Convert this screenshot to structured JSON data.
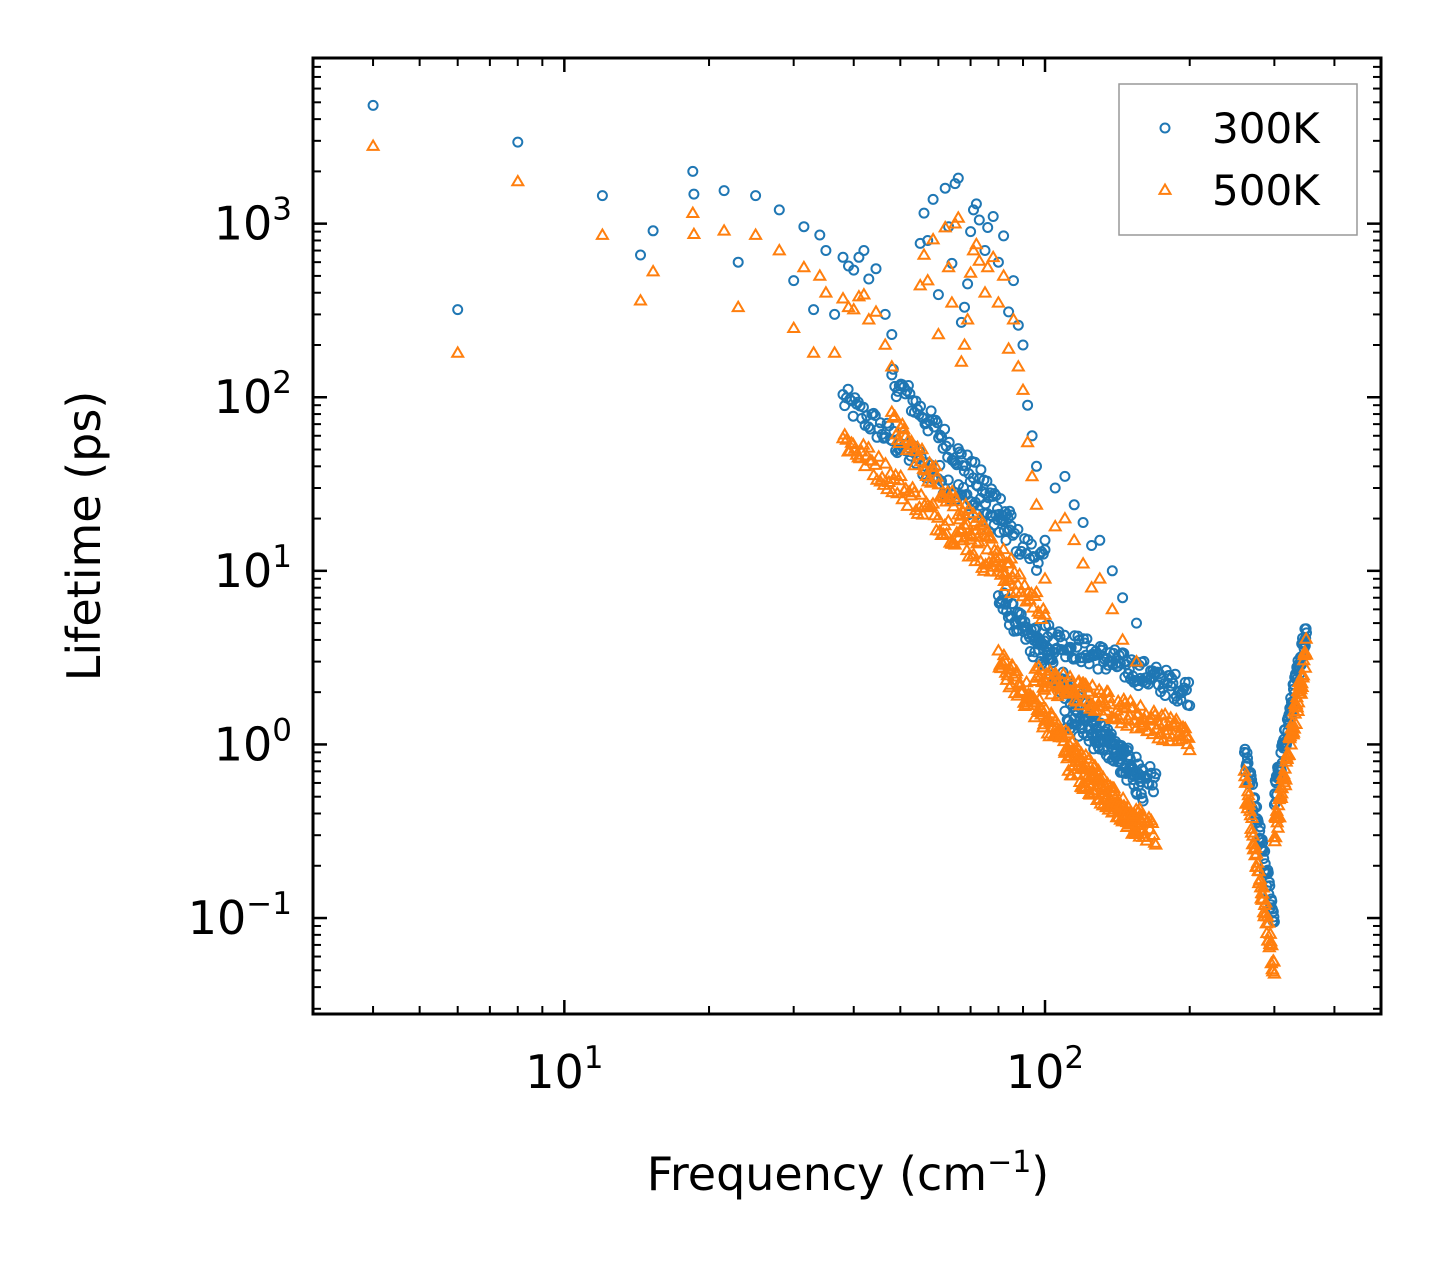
{
  "chart_data": {
    "type": "scatter",
    "title": "",
    "xlabel": "Frequency (cm",
    "xlabel_sup": "−1",
    "xlabel_end": ")",
    "ylabel": "Lifetime (ps)",
    "xscale": "log",
    "yscale": "log",
    "xlim": [
      3,
      500
    ],
    "ylim": [
      0.028,
      9000
    ],
    "x_ticks": [
      {
        "value": 10,
        "base": "10",
        "exp": "1"
      },
      {
        "value": 100,
        "base": "10",
        "exp": "2"
      }
    ],
    "y_ticks": [
      {
        "value": 0.1,
        "base": "10",
        "exp": "−1"
      },
      {
        "value": 1,
        "base": "10",
        "exp": "0"
      },
      {
        "value": 10,
        "base": "10",
        "exp": "1"
      },
      {
        "value": 100,
        "base": "10",
        "exp": "2"
      },
      {
        "value": 1000,
        "base": "10",
        "exp": "3"
      }
    ],
    "legend_position": "top-right",
    "series": [
      {
        "name": "300K",
        "marker": "circle",
        "color": "#1f77b4",
        "points": [
          [
            4,
            4800
          ],
          [
            6,
            320
          ],
          [
            8,
            2950
          ],
          [
            12,
            1450
          ],
          [
            14.4,
            660
          ],
          [
            15.3,
            910
          ],
          [
            18.5,
            2000
          ],
          [
            18.6,
            1480
          ],
          [
            21.5,
            1550
          ],
          [
            23,
            600
          ],
          [
            25,
            1450
          ],
          [
            28,
            1200
          ],
          [
            30,
            470
          ],
          [
            31.5,
            960
          ],
          [
            33,
            320
          ],
          [
            34,
            860
          ],
          [
            35,
            700
          ],
          [
            36.5,
            300
          ],
          [
            38,
            640
          ],
          [
            39,
            570
          ],
          [
            40,
            540
          ],
          [
            41,
            640
          ],
          [
            42,
            700
          ],
          [
            43,
            480
          ],
          [
            44.5,
            550
          ],
          [
            46.5,
            300
          ],
          [
            48,
            230
          ],
          [
            55,
            770
          ],
          [
            56,
            1150
          ],
          [
            57,
            800
          ],
          [
            58.5,
            1380
          ],
          [
            60,
            390
          ],
          [
            62,
            1600
          ],
          [
            63,
            960
          ],
          [
            64,
            590
          ],
          [
            65,
            1700
          ],
          [
            66,
            1830
          ],
          [
            67,
            270
          ],
          [
            68,
            330
          ],
          [
            69,
            450
          ],
          [
            70,
            900
          ],
          [
            71,
            1200
          ],
          [
            72,
            1300
          ],
          [
            73,
            1050
          ],
          [
            75,
            700
          ],
          [
            76,
            950
          ],
          [
            78,
            1100
          ],
          [
            80,
            600
          ],
          [
            82,
            850
          ],
          [
            84,
            310
          ],
          [
            86,
            470
          ],
          [
            88,
            260
          ],
          [
            90,
            200
          ],
          [
            92,
            90
          ],
          [
            94,
            60
          ],
          [
            96,
            40
          ],
          [
            100,
            15
          ],
          [
            105,
            30
          ],
          [
            110,
            35
          ],
          [
            115,
            24
          ],
          [
            120,
            19
          ],
          [
            125,
            14
          ],
          [
            130,
            15
          ],
          [
            138,
            10
          ],
          [
            145,
            7
          ],
          [
            155,
            5
          ]
        ],
        "dense_bands": [
          {
            "x": [
              38,
              100
            ],
            "y": [
              98,
              11
            ],
            "n": 120
          },
          {
            "x": [
              48,
              85
            ],
            "y": [
              130,
              20
            ],
            "n": 80
          },
          {
            "x": [
              80,
              160
            ],
            "y": [
              7,
              0.55
            ],
            "n": 160
          },
          {
            "x": [
              95,
              200
            ],
            "y": [
              4.5,
              2.0
            ],
            "n": 140
          },
          {
            "x": [
              110,
              170
            ],
            "y": [
              1.5,
              0.6
            ],
            "n": 80
          },
          {
            "x": [
              260,
              300
            ],
            "y": [
              0.9,
              0.1
            ],
            "n": 60
          },
          {
            "x": [
              300,
              350
            ],
            "y": [
              0.5,
              4.8
            ],
            "n": 80
          }
        ]
      },
      {
        "name": "500K",
        "marker": "triangle",
        "color": "#ff7f0e",
        "points": [
          [
            4,
            2800
          ],
          [
            6,
            180
          ],
          [
            8,
            1750
          ],
          [
            12,
            860
          ],
          [
            14.4,
            360
          ],
          [
            15.3,
            530
          ],
          [
            18.5,
            1150
          ],
          [
            18.6,
            870
          ],
          [
            21.5,
            910
          ],
          [
            23,
            330
          ],
          [
            25,
            860
          ],
          [
            28,
            700
          ],
          [
            30,
            250
          ],
          [
            31.5,
            560
          ],
          [
            33,
            180
          ],
          [
            34,
            500
          ],
          [
            35,
            400
          ],
          [
            36.5,
            180
          ],
          [
            38,
            370
          ],
          [
            39,
            330
          ],
          [
            40,
            320
          ],
          [
            41,
            380
          ],
          [
            42,
            390
          ],
          [
            43,
            280
          ],
          [
            44.5,
            310
          ],
          [
            46.5,
            200
          ],
          [
            48,
            150
          ],
          [
            55,
            440
          ],
          [
            56,
            660
          ],
          [
            57,
            470
          ],
          [
            58.5,
            810
          ],
          [
            60,
            230
          ],
          [
            62,
            950
          ],
          [
            63,
            560
          ],
          [
            64,
            350
          ],
          [
            65,
            1000
          ],
          [
            66,
            1080
          ],
          [
            67,
            160
          ],
          [
            68,
            200
          ],
          [
            69,
            280
          ],
          [
            70,
            520
          ],
          [
            71,
            700
          ],
          [
            72,
            760
          ],
          [
            73,
            610
          ],
          [
            75,
            400
          ],
          [
            76,
            560
          ],
          [
            78,
            640
          ],
          [
            80,
            350
          ],
          [
            82,
            500
          ],
          [
            84,
            190
          ],
          [
            86,
            280
          ],
          [
            88,
            150
          ],
          [
            90,
            110
          ],
          [
            92,
            55
          ],
          [
            94,
            35
          ],
          [
            96,
            24
          ],
          [
            100,
            9
          ],
          [
            105,
            18
          ],
          [
            110,
            20
          ],
          [
            115,
            15
          ],
          [
            120,
            11
          ],
          [
            125,
            8
          ],
          [
            130,
            9
          ],
          [
            138,
            6
          ],
          [
            145,
            4
          ],
          [
            155,
            3
          ]
        ],
        "dense_bands": [
          {
            "x": [
              38,
              100
            ],
            "y": [
              58,
              6
            ],
            "n": 120
          },
          {
            "x": [
              48,
              85
            ],
            "y": [
              70,
              10
            ],
            "n": 80
          },
          {
            "x": [
              80,
              160
            ],
            "y": [
              3,
              0.3
            ],
            "n": 160
          },
          {
            "x": [
              95,
              200
            ],
            "y": [
              2.5,
              1.1
            ],
            "n": 140
          },
          {
            "x": [
              110,
              170
            ],
            "y": [
              0.8,
              0.3
            ],
            "n": 80
          },
          {
            "x": [
              260,
              300
            ],
            "y": [
              0.6,
              0.05
            ],
            "n": 60
          },
          {
            "x": [
              300,
              350
            ],
            "y": [
              0.3,
              3.5
            ],
            "n": 80
          }
        ]
      }
    ]
  }
}
